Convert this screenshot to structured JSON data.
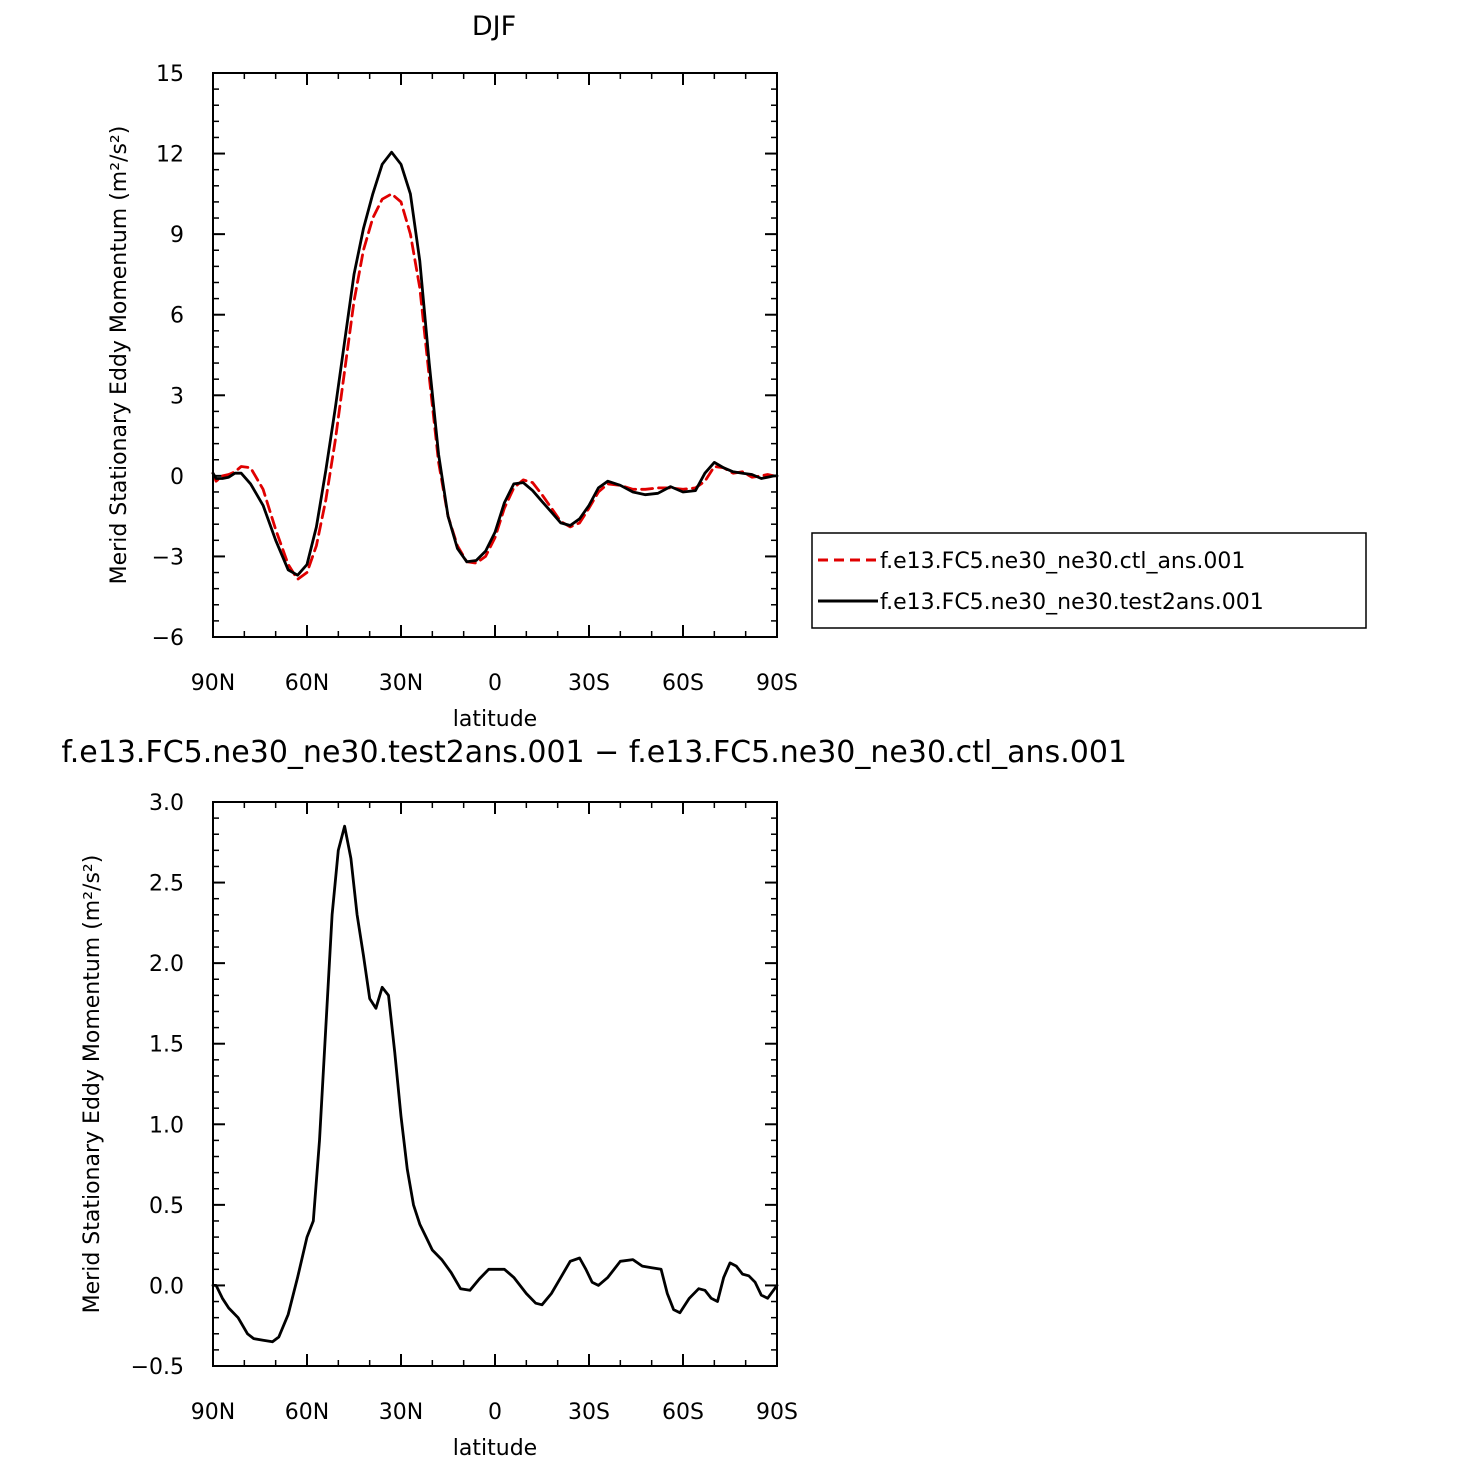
{
  "chart_data": [
    {
      "type": "line",
      "title": "DJF",
      "xlabel": "latitude",
      "ylabel": "Merid Stationary Eddy Momentum  (m²/s²)",
      "xlim": [
        90,
        -90
      ],
      "ylim": [
        -6,
        15
      ],
      "x_ticks": [
        90,
        60,
        30,
        0,
        -30,
        -60,
        -90
      ],
      "x_tick_labels": [
        "90N",
        "60N",
        "30N",
        "0",
        "30S",
        "60S",
        "90S"
      ],
      "y_ticks": [
        -6,
        -3,
        0,
        3,
        6,
        9,
        12,
        15
      ],
      "y_tick_labels": [
        "−6",
        "−3",
        "0",
        "3",
        "6",
        "9",
        "12",
        "15"
      ],
      "grid": false,
      "legend_position": "right",
      "series": [
        {
          "name": "f.e13.FC5.ne30_ne30.ctl_ans.001",
          "color": "#e00000",
          "dash": "dashed",
          "x": [
            90,
            89,
            87,
            85,
            83,
            81,
            78,
            74,
            70,
            66,
            63,
            60,
            57,
            54,
            51,
            48,
            45,
            42,
            39,
            36,
            33,
            30,
            27,
            24,
            21,
            18,
            15,
            12,
            9,
            6,
            3,
            0,
            -3,
            -6,
            -9,
            -12,
            -15,
            -18,
            -21,
            -24,
            -27,
            -30,
            -33,
            -36,
            -40,
            -44,
            -48,
            -52,
            -56,
            -60,
            -64,
            -67,
            -70,
            -73,
            -76,
            -79,
            -82,
            -85,
            -87,
            -89,
            -90
          ],
          "y": [
            0.1,
            -0.2,
            0,
            0.05,
            0.15,
            0.35,
            0.3,
            -0.5,
            -2.0,
            -3.3,
            -3.85,
            -3.6,
            -2.6,
            -0.9,
            1.3,
            3.9,
            6.5,
            8.4,
            9.6,
            10.3,
            10.5,
            10.2,
            9.0,
            7.0,
            3.7,
            0.5,
            -1.5,
            -2.6,
            -3.2,
            -3.25,
            -3.0,
            -2.3,
            -1.2,
            -0.45,
            -0.15,
            -0.25,
            -0.7,
            -1.2,
            -1.7,
            -1.9,
            -1.75,
            -1.2,
            -0.6,
            -0.3,
            -0.35,
            -0.5,
            -0.5,
            -0.45,
            -0.45,
            -0.5,
            -0.45,
            -0.2,
            0.35,
            0.3,
            0.1,
            0.15,
            -0.05,
            0.0,
            0.05,
            0.0,
            0.0
          ]
        },
        {
          "name": "f.e13.FC5.ne30_ne30.test2ans.001",
          "color": "#000000",
          "dash": "solid",
          "x": [
            90,
            89,
            87,
            85,
            83,
            81,
            78,
            74,
            70,
            66,
            63,
            60,
            57,
            54,
            51,
            48,
            45,
            42,
            39,
            36,
            33,
            30,
            27,
            24,
            21,
            18,
            15,
            12,
            9,
            6,
            3,
            0,
            -3,
            -6,
            -9,
            -12,
            -15,
            -18,
            -21,
            -24,
            -27,
            -30,
            -33,
            -36,
            -40,
            -44,
            -48,
            -52,
            -56,
            -60,
            -64,
            -67,
            -70,
            -73,
            -76,
            -79,
            -82,
            -85,
            -87,
            -89,
            -90
          ],
          "y": [
            0.1,
            -0.1,
            -0.1,
            -0.05,
            0.1,
            0.1,
            -0.3,
            -1.1,
            -2.4,
            -3.5,
            -3.7,
            -3.3,
            -1.9,
            0.2,
            2.5,
            5.0,
            7.5,
            9.2,
            10.5,
            11.6,
            12.05,
            11.6,
            10.5,
            8.0,
            4.2,
            0.8,
            -1.5,
            -2.7,
            -3.2,
            -3.15,
            -2.8,
            -2.1,
            -1.0,
            -0.3,
            -0.25,
            -0.55,
            -0.95,
            -1.35,
            -1.75,
            -1.85,
            -1.6,
            -1.1,
            -0.45,
            -0.2,
            -0.35,
            -0.6,
            -0.7,
            -0.65,
            -0.4,
            -0.6,
            -0.55,
            0.1,
            0.5,
            0.3,
            0.15,
            0.1,
            0.05,
            -0.1,
            -0.05,
            0.0,
            0.0
          ]
        }
      ]
    },
    {
      "type": "line",
      "title": "f.e13.FC5.ne30_ne30.test2ans.001 − f.e13.FC5.ne30_ne30.ctl_ans.001",
      "xlabel": "latitude",
      "ylabel": "Merid Stationary Eddy Momentum  (m²/s²)",
      "xlim": [
        90,
        -90
      ],
      "ylim": [
        -0.5,
        3.0
      ],
      "x_ticks": [
        90,
        60,
        30,
        0,
        -30,
        -60,
        -90
      ],
      "x_tick_labels": [
        "90N",
        "60N",
        "30N",
        "0",
        "30S",
        "60S",
        "90S"
      ],
      "y_ticks": [
        -0.5,
        0.0,
        0.5,
        1.0,
        1.5,
        2.0,
        2.5,
        3.0
      ],
      "y_tick_labels": [
        "−0.5",
        "0.0",
        "0.5",
        "1.0",
        "1.5",
        "2.0",
        "2.5",
        "3.0"
      ],
      "grid": false,
      "series": [
        {
          "color": "#000000",
          "dash": "solid",
          "x": [
            90,
            89,
            87,
            85,
            82,
            79,
            77,
            74,
            71,
            69,
            66,
            63,
            60,
            58,
            56,
            54,
            52,
            50,
            48,
            46,
            44,
            42,
            40,
            38,
            36,
            34,
            32,
            30,
            28,
            26,
            24,
            22,
            20,
            17,
            14,
            11,
            8,
            5,
            2,
            -1,
            -3,
            -6,
            -10,
            -13,
            -15,
            -18,
            -21,
            -24,
            -27,
            -29,
            -31,
            -33,
            -36,
            -40,
            -44,
            -47,
            -50,
            -53,
            -55,
            -57,
            -59,
            -62,
            -65,
            -67,
            -69,
            -71,
            -73,
            -75,
            -77,
            -79,
            -81,
            -83,
            -85,
            -87,
            -90
          ],
          "y": [
            0.0,
            0.0,
            -0.08,
            -0.14,
            -0.2,
            -0.3,
            -0.33,
            -0.34,
            -0.35,
            -0.32,
            -0.18,
            0.05,
            0.3,
            0.4,
            0.9,
            1.6,
            2.3,
            2.7,
            2.85,
            2.65,
            2.3,
            2.05,
            1.78,
            1.72,
            1.85,
            1.8,
            1.45,
            1.05,
            0.72,
            0.5,
            0.38,
            0.3,
            0.22,
            0.16,
            0.08,
            -0.02,
            -0.03,
            0.04,
            0.1,
            0.1,
            0.1,
            0.05,
            -0.05,
            -0.11,
            -0.12,
            -0.05,
            0.05,
            0.15,
            0.17,
            0.1,
            0.02,
            0.0,
            0.05,
            0.15,
            0.16,
            0.12,
            0.11,
            0.1,
            -0.05,
            -0.15,
            -0.17,
            -0.08,
            -0.02,
            -0.03,
            -0.08,
            -0.1,
            0.05,
            0.14,
            0.12,
            0.07,
            0.06,
            0.02,
            -0.06,
            -0.08,
            0.0
          ]
        }
      ]
    }
  ]
}
